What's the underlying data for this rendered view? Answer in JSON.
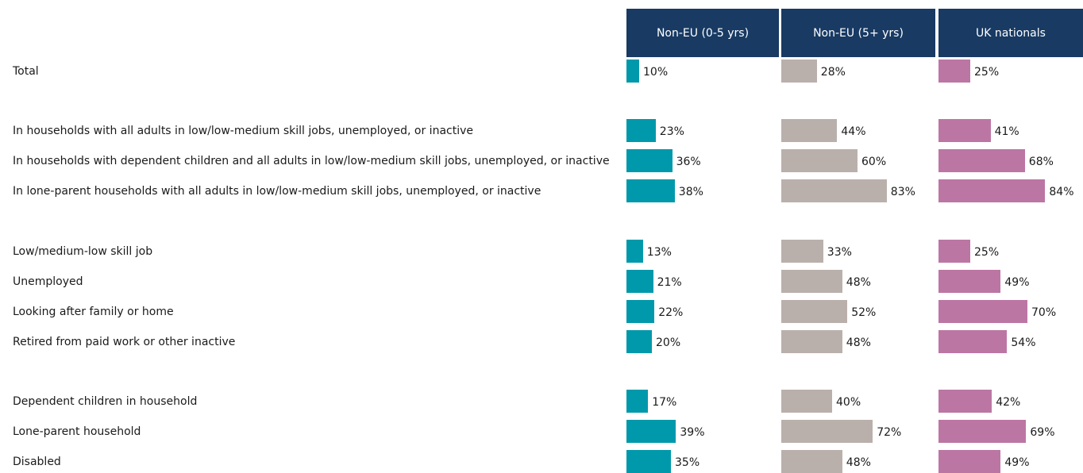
{
  "chart_data": {
    "type": "bar",
    "title": "",
    "xlabel": "",
    "ylabel": "",
    "xlim": [
      0,
      100
    ],
    "grid": false,
    "legend": "none",
    "value_suffix": "%",
    "categories": [
      "Total",
      "In households with all adults in low/low-medium skill jobs, unemployed, or inactive",
      "In households with dependent children and all adults in low/low-medium skill jobs, unemployed, or inactive",
      "In lone-parent households with all adults in low/low-medium skill jobs, unemployed, or inactive",
      "Low/medium-low skill job",
      "Unemployed",
      "Looking after family or home",
      "Retired from paid work or other inactive",
      "Dependent children in household",
      "Lone-parent household",
      "Disabled"
    ],
    "series": [
      {
        "name": "Non-EU (0-5 yrs)",
        "color": "#0099ab",
        "values": [
          10,
          23,
          36,
          38,
          13,
          21,
          22,
          20,
          17,
          39,
          35
        ]
      },
      {
        "name": "Non-EU (5+ yrs)",
        "color": "#bab0ab",
        "values": [
          28,
          44,
          60,
          83,
          33,
          48,
          52,
          48,
          40,
          72,
          48
        ]
      },
      {
        "name": "UK nationals",
        "color": "#bc76a4",
        "values": [
          25,
          41,
          68,
          84,
          25,
          49,
          70,
          54,
          42,
          69,
          49
        ]
      }
    ]
  },
  "colors": {
    "header_bg": "#183a63",
    "header_text": "#ffffff"
  }
}
